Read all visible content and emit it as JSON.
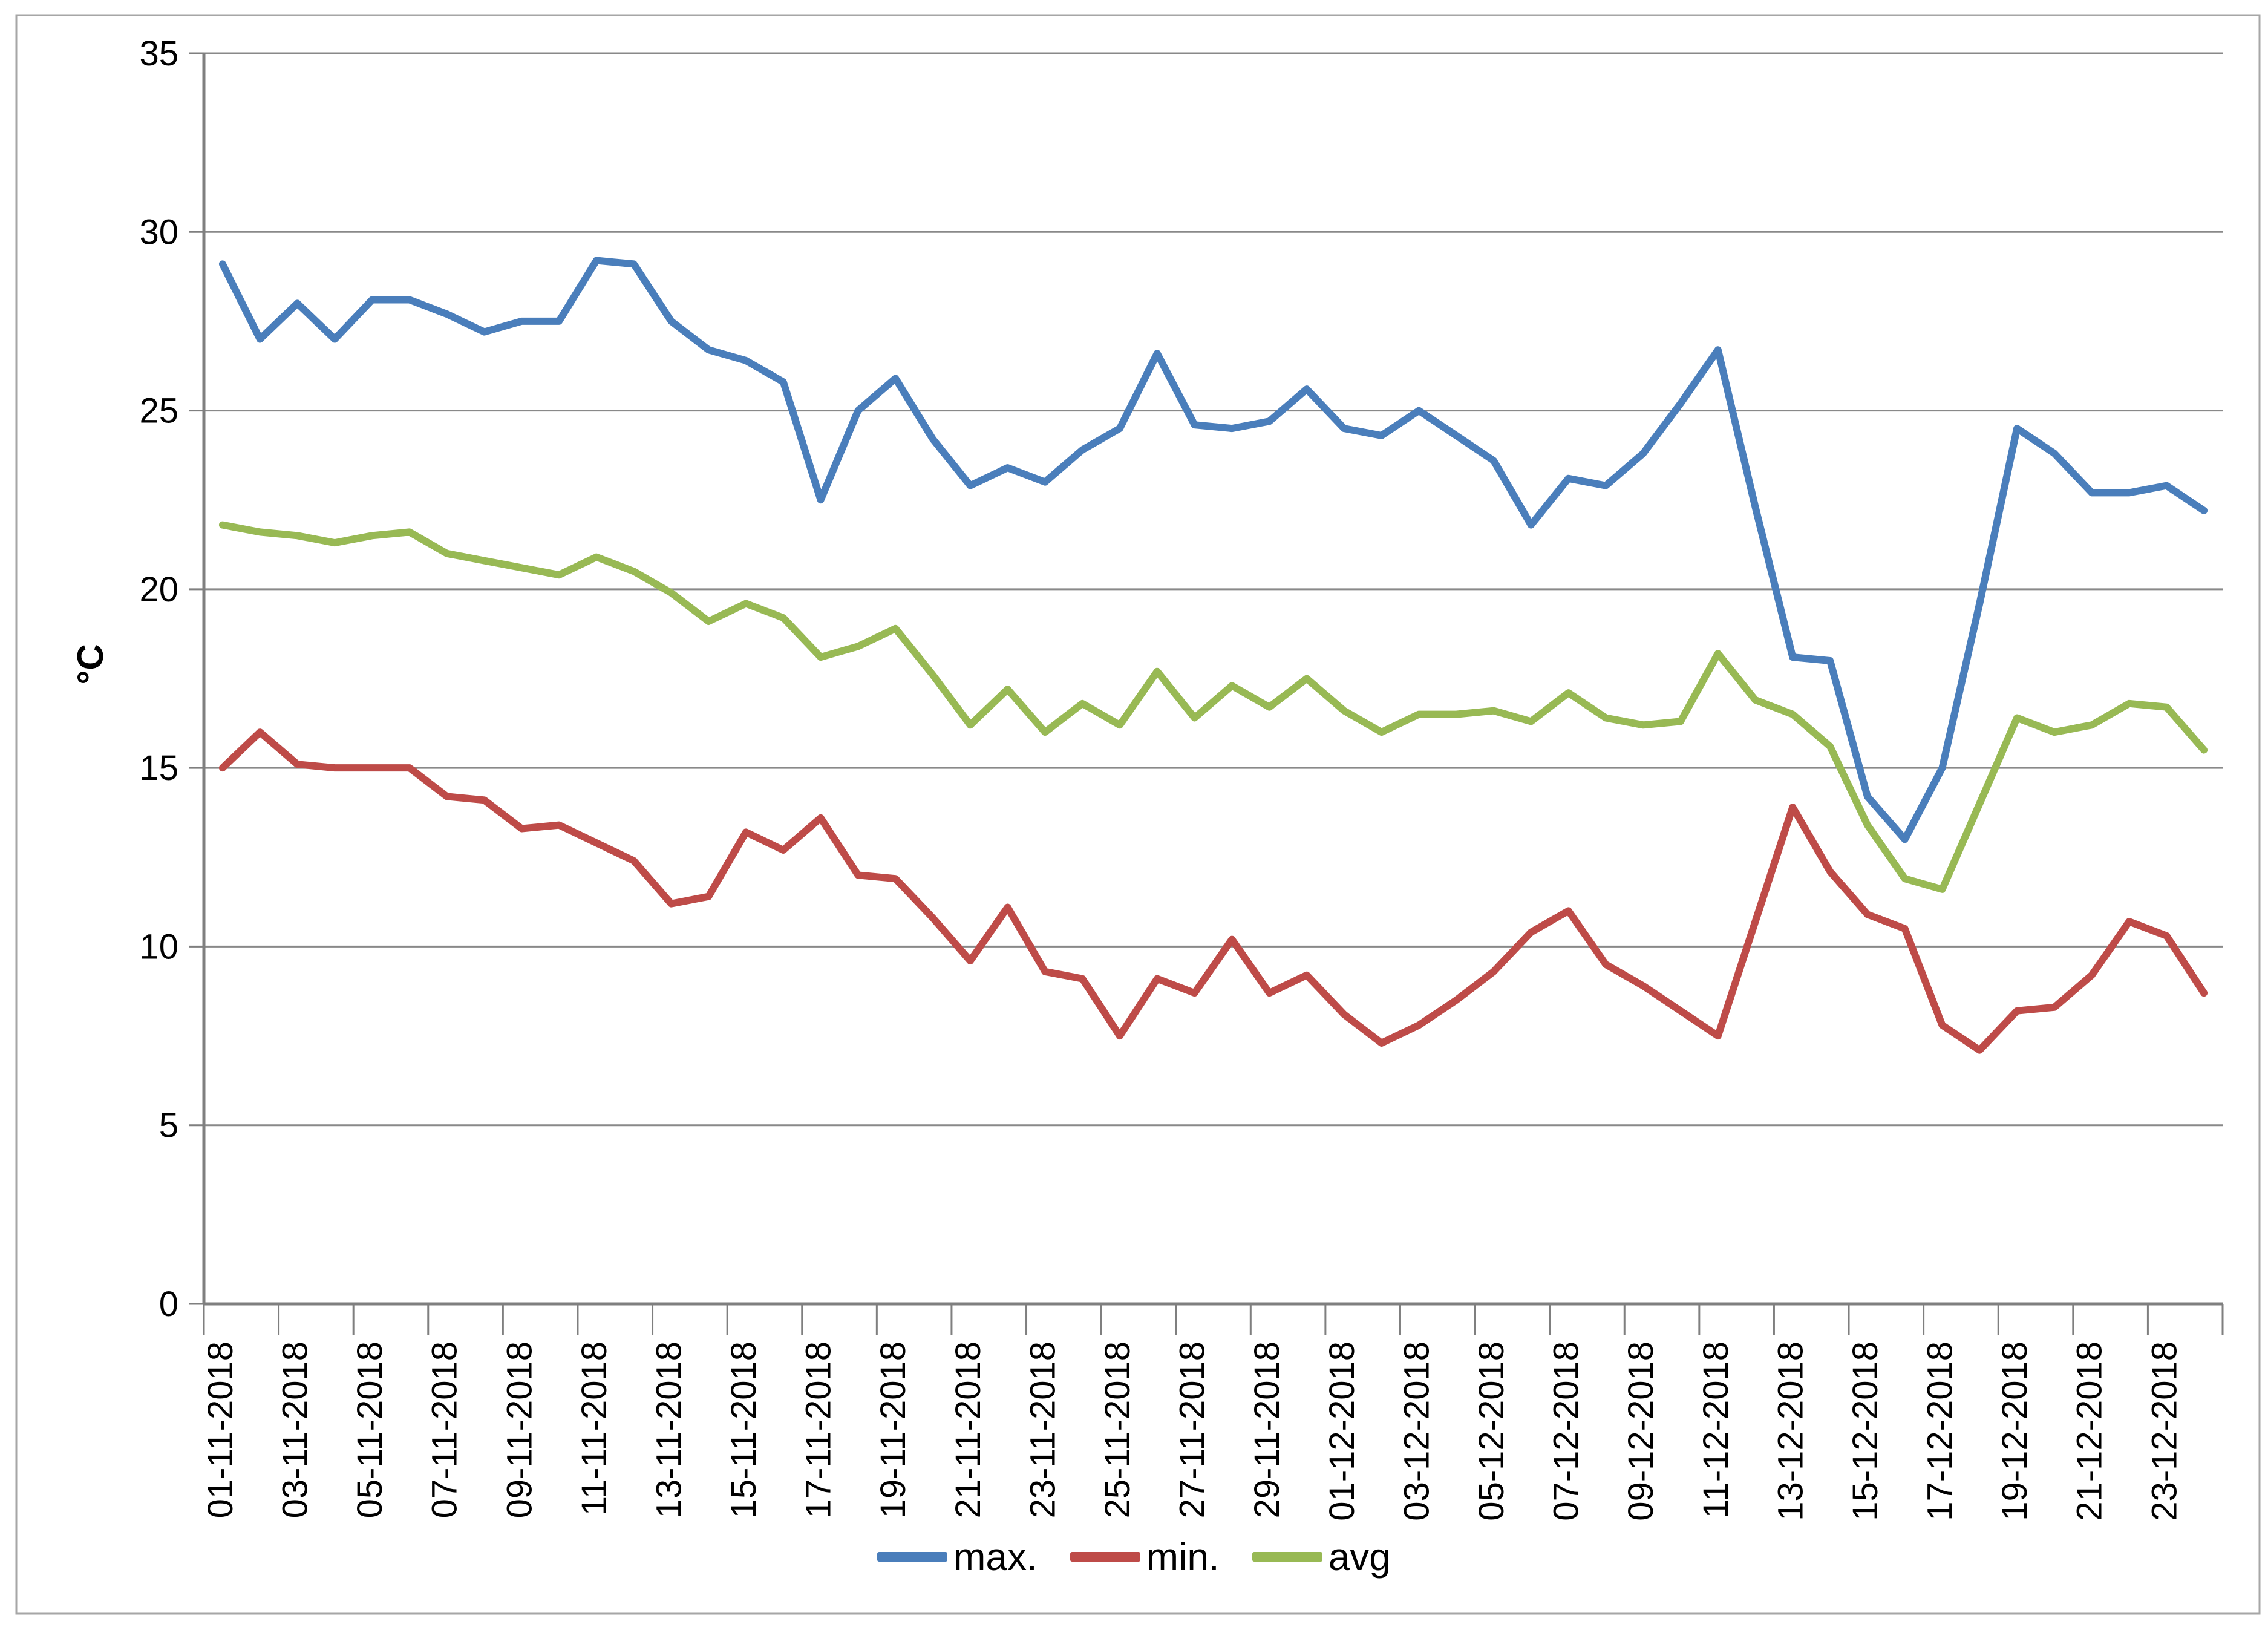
{
  "chart_data": {
    "type": "line",
    "title": "",
    "xlabel": "",
    "ylabel": "°C",
    "ylim": [
      0,
      35
    ],
    "yticks": [
      0,
      5,
      10,
      15,
      20,
      25,
      30,
      35
    ],
    "grid": "horizontal",
    "legend_position": "bottom",
    "x": [
      "01-11-2018",
      "02-11-2018",
      "03-11-2018",
      "04-11-2018",
      "05-11-2018",
      "06-11-2018",
      "07-11-2018",
      "08-11-2018",
      "09-11-2018",
      "10-11-2018",
      "11-11-2018",
      "12-11-2018",
      "13-11-2018",
      "14-11-2018",
      "15-11-2018",
      "16-11-2018",
      "17-11-2018",
      "18-11-2018",
      "19-11-2018",
      "20-11-2018",
      "21-11-2018",
      "22-11-2018",
      "23-11-2018",
      "24-11-2018",
      "25-11-2018",
      "26-11-2018",
      "27-11-2018",
      "28-11-2018",
      "29-11-2018",
      "30-11-2018",
      "01-12-2018",
      "02-12-2018",
      "03-12-2018",
      "04-12-2018",
      "05-12-2018",
      "06-12-2018",
      "07-12-2018",
      "08-12-2018",
      "09-12-2018",
      "10-12-2018",
      "11-12-2018",
      "12-12-2018",
      "13-12-2018",
      "14-12-2018",
      "15-12-2018",
      "16-12-2018",
      "17-12-2018",
      "18-12-2018",
      "19-12-2018",
      "20-12-2018",
      "21-12-2018",
      "22-12-2018",
      "23-12-2018",
      "24-12-2018"
    ],
    "xtick_labels": [
      "01-11-2018",
      "03-11-2018",
      "05-11-2018",
      "07-11-2018",
      "09-11-2018",
      "11-11-2018",
      "13-11-2018",
      "15-11-2018",
      "17-11-2018",
      "19-11-2018",
      "21-11-2018",
      "23-11-2018",
      "25-11-2018",
      "27-11-2018",
      "29-11-2018",
      "01-12-2018",
      "03-12-2018",
      "05-12-2018",
      "07-12-2018",
      "09-12-2018",
      "11-12-2018",
      "13-12-2018",
      "15-12-2018",
      "17-12-2018",
      "19-12-2018",
      "21-12-2018",
      "23-12-2018"
    ],
    "series": [
      {
        "name": "max.",
        "color": "#4A7EBB",
        "values": [
          29.1,
          27.0,
          28.0,
          27.0,
          28.1,
          28.1,
          27.7,
          27.2,
          27.5,
          27.5,
          29.2,
          29.1,
          27.5,
          26.7,
          26.4,
          25.8,
          22.5,
          25.0,
          25.9,
          24.2,
          22.9,
          23.4,
          23.0,
          23.9,
          24.5,
          26.6,
          24.6,
          24.5,
          24.7,
          25.6,
          24.5,
          24.3,
          25.0,
          24.3,
          23.6,
          21.8,
          23.1,
          22.9,
          23.8,
          25.2,
          26.7,
          22.3,
          18.1,
          18.0,
          14.2,
          13.0,
          15.0,
          19.6,
          24.5,
          23.8,
          22.7,
          22.7,
          22.9,
          22.2
        ]
      },
      {
        "name": "min.",
        "color": "#BE4B48",
        "values": [
          15.0,
          16.0,
          15.1,
          15.0,
          15.0,
          15.0,
          14.2,
          14.1,
          13.3,
          13.4,
          12.9,
          12.4,
          11.2,
          11.4,
          13.2,
          12.7,
          13.6,
          12.0,
          11.9,
          10.8,
          9.6,
          11.1,
          9.3,
          9.1,
          7.5,
          9.1,
          8.7,
          10.2,
          8.7,
          9.2,
          8.1,
          7.3,
          7.8,
          8.5,
          9.3,
          10.4,
          11.0,
          9.5,
          8.9,
          8.2,
          7.5,
          10.7,
          13.9,
          12.1,
          10.9,
          10.5,
          7.8,
          7.1,
          8.2,
          8.3,
          9.2,
          10.7,
          10.3,
          8.7
        ]
      },
      {
        "name": "avg",
        "color": "#98B954",
        "values": [
          21.8,
          21.6,
          21.5,
          21.3,
          21.5,
          21.6,
          21.0,
          20.8,
          20.6,
          20.4,
          20.9,
          20.5,
          19.9,
          19.1,
          19.6,
          19.2,
          18.1,
          18.4,
          18.9,
          17.6,
          16.2,
          17.2,
          16.0,
          16.8,
          16.2,
          17.7,
          16.4,
          17.3,
          16.7,
          17.5,
          16.6,
          16.0,
          16.5,
          16.5,
          16.6,
          16.3,
          17.1,
          16.4,
          16.2,
          16.3,
          18.2,
          16.9,
          16.5,
          15.6,
          13.4,
          11.9,
          11.6,
          14.0,
          16.4,
          16.0,
          16.2,
          16.8,
          16.7,
          15.5
        ]
      }
    ],
    "colors": {
      "gridline": "#898989",
      "axis": "#7F7F7F",
      "frame": "#A6A6A6",
      "text": "#000000"
    }
  }
}
